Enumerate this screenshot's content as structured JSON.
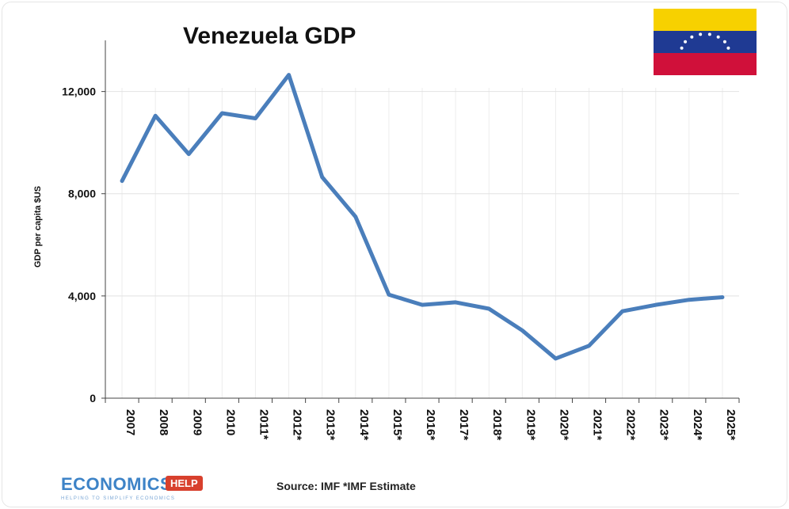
{
  "chart_data": {
    "type": "line",
    "title": "Venezuela GDP",
    "xlabel": "",
    "ylabel": "GDP per capita $US",
    "categories": [
      "2007",
      "2008",
      "2009",
      "2010",
      "2011*",
      "2012*",
      "2013*",
      "2014*",
      "2015*",
      "2016*",
      "2017*",
      "2018*",
      "2019*",
      "2020*",
      "2021*",
      "2022*",
      "2023*",
      "2024*",
      "2025*"
    ],
    "series": [
      {
        "values": [
          8500,
          11050,
          9550,
          11150,
          10950,
          12650,
          8650,
          7100,
          4050,
          3650,
          3750,
          3500,
          2650,
          1550,
          2050,
          3400,
          3650,
          3850,
          3950
        ]
      }
    ],
    "ylim": [
      0,
      14000
    ],
    "yticks": [
      0,
      4000,
      8000,
      12000
    ],
    "ytick_labels": [
      "0",
      "4,000",
      "8,000",
      "12,000"
    ],
    "line_color": "#4a7ebb",
    "grid": true
  },
  "source": "Source: IMF *IMF Estimate",
  "logo": {
    "main": "ECONOMICS",
    "help": "HELP",
    "tagline": "HELPING TO SIMPLIFY ECONOMICS"
  },
  "flag": {
    "colors": [
      "#f7d100",
      "#1f3a93",
      "#d0103a"
    ],
    "star_color": "#ffffff"
  }
}
